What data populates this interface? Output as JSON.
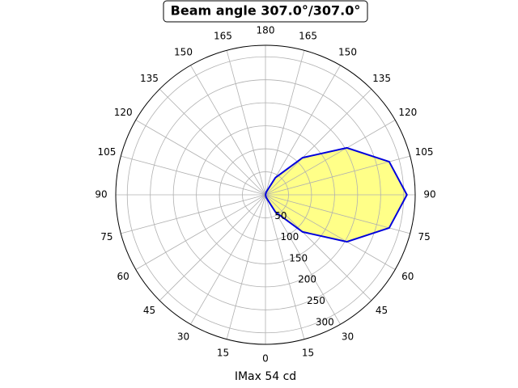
{
  "chart_data": {
    "type": "polar",
    "title": "Beam angle 307.0°/307.0°",
    "xlabel": "IMax 54 cd",
    "theta": [
      0,
      15,
      30,
      45,
      60,
      75,
      90,
      105,
      120,
      135,
      150,
      165,
      180
    ],
    "values": [
      0,
      6,
      43,
      114,
      204,
      278,
      307,
      278,
      204,
      114,
      43,
      6,
      0
    ],
    "color": "#0000dd",
    "fill": "#ffff88",
    "rlim": [
      0,
      325
    ],
    "rticks": [
      50,
      100,
      150,
      200,
      250,
      300
    ],
    "thetaticks": [
      {
        "value": -165,
        "label": "165"
      },
      {
        "value": -150,
        "label": "150"
      },
      {
        "value": -135,
        "label": "135"
      },
      {
        "value": -120,
        "label": "120"
      },
      {
        "value": -105,
        "label": "105"
      },
      {
        "value": -90,
        "label": "90"
      },
      {
        "value": -75,
        "label": "75"
      },
      {
        "value": -60,
        "label": "60"
      },
      {
        "value": -45,
        "label": "45"
      },
      {
        "value": -30,
        "label": "30"
      },
      {
        "value": -15,
        "label": "15"
      },
      0,
      15,
      30,
      45,
      60,
      75,
      90,
      105,
      120,
      135,
      150,
      165,
      180
    ],
    "grid": true
  }
}
